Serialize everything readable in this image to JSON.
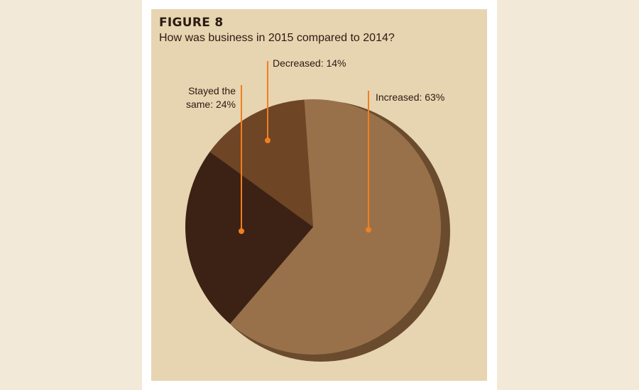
{
  "figure_label": "FIGURE 8",
  "colors": {
    "increased": "#98714a",
    "decreased": "#6e4525",
    "stayed_same": "#3c2214",
    "rim": "#6a4b2d",
    "leader": "#f07f22",
    "panel": "#e7d4b1"
  },
  "chart_data": {
    "type": "pie",
    "title": "How was business in 2015 compared to 2014?",
    "slices": [
      {
        "label": "Increased: 63%",
        "value": 63
      },
      {
        "label": "Stayed the same: 24%",
        "value": 24,
        "label_lines": [
          "Stayed the",
          "same: 24%"
        ]
      },
      {
        "label": "Decreased: 14%",
        "value": 14
      }
    ],
    "legend": "none"
  }
}
